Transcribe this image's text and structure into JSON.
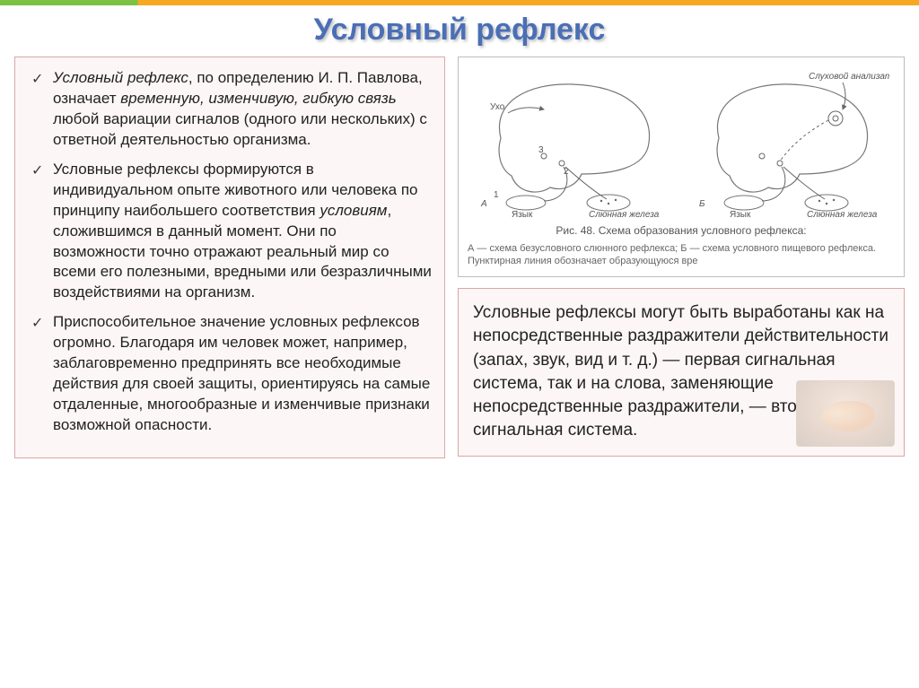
{
  "title": "Условный рефлекс",
  "left": {
    "items": [
      "<span class='em'>Условный рефлекс</span>, по определению И. П. Павлова, означает <span class='em'>временную, изменчивую, гибкую связь</span> любой вариации сигналов (одного или нескольких) с ответной деятельностью организма.",
      "Условные рефлексы формируются в индивидуальном опыте животного или человека по принципу наибольшего соответствия <span class='em'>условиям</span>, сложившимся в данный момент. Они по возможности точно отражают реальный мир со всеми его полезными, вредными или безразличными воздействиями на организм.",
      "Приспособительное значение условных рефлексов огромно. Благодаря им человек может, например, заблаговременно предпринять все необходимые действия для своей защиты, ориентируясь на самые отдаленные, многообразные и изменчивые признаки возможной опасности."
    ]
  },
  "diagram": {
    "ear_label": "Ухо",
    "analyzer_label": "Слуховой анализатор",
    "tongue_label": "Язык",
    "gland_label": "Слюнная железа",
    "panel_a": "А",
    "panel_b": "Б",
    "caption_title": "Рис. 48. Схема образования условного рефлекса:",
    "caption_sub": "А — схема безусловного слюнного рефлекса; Б — схема условного пищевого рефлекса. Пунктирная линия обозначает образующуюся вре",
    "colors": {
      "stroke": "#777777",
      "arrow": "#666666",
      "text": "#555555",
      "bg": "#ffffff"
    }
  },
  "right_text": "Условные рефлексы могут быть выработаны как на непосредственные раздражители действительности (запах, звук, вид и т. д.) — первая сигнальная система, так и на слова, заменяющие непосредственные раздражители, — вторая сигнальная система.",
  "style": {
    "title_color": "#4a6fb5",
    "title_fontsize": 34,
    "body_fontsize": 17,
    "right_fontsize": 19,
    "box_border": "#d9a7a7",
    "box_bg": "#fdf6f6",
    "accent_green": "#7cc243",
    "accent_orange": "#f7a823"
  }
}
